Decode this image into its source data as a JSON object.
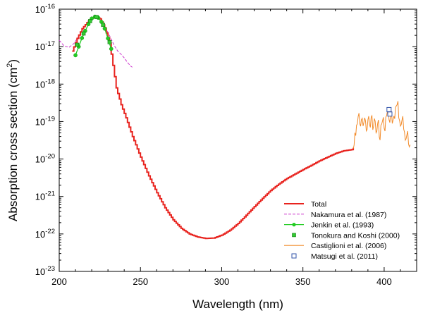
{
  "chart_data": {
    "type": "line",
    "xlabel": "Wavelength (nm)",
    "ylabel_main": "Absorption cross section (cm",
    "ylabel_sup": "2",
    "ylabel_close": ")",
    "xlim": [
      200,
      420
    ],
    "ylim_log10": [
      -23,
      -16
    ],
    "x_ticks": [
      200,
      250,
      300,
      350,
      400
    ],
    "y_tick_base": "10",
    "y_tick_exponents": [
      "-23",
      "-22",
      "-21",
      "-20",
      "-19",
      "-18",
      "-17",
      "-16"
    ],
    "colors": {
      "total": "#e8231e",
      "nakamura": "#cc33cc",
      "jenkin": "#22cc22",
      "tonokura": "#33cc33",
      "castiglioni": "#f28b2a",
      "matsugi": "#3355aa"
    },
    "series": [
      {
        "name": "Total",
        "style": "staircase-line",
        "points": [
          [
            208,
            -17.12
          ],
          [
            211,
            -16.78
          ],
          [
            214,
            -16.52
          ],
          [
            217,
            -16.36
          ],
          [
            220,
            -16.24
          ],
          [
            222.5,
            -16.2
          ],
          [
            225,
            -16.26
          ],
          [
            228,
            -16.5
          ],
          [
            231,
            -16.9
          ],
          [
            233,
            -17.5
          ],
          [
            235,
            -18.1
          ],
          [
            238,
            -18.55
          ],
          [
            241,
            -18.9
          ],
          [
            245,
            -19.4
          ],
          [
            250,
            -19.95
          ],
          [
            255,
            -20.45
          ],
          [
            260,
            -20.9
          ],
          [
            265,
            -21.3
          ],
          [
            270,
            -21.62
          ],
          [
            275,
            -21.85
          ],
          [
            280,
            -22.0
          ],
          [
            285,
            -22.08
          ],
          [
            290,
            -22.12
          ],
          [
            295,
            -22.11
          ],
          [
            300,
            -22.03
          ],
          [
            305,
            -21.9
          ],
          [
            310,
            -21.72
          ],
          [
            315,
            -21.5
          ],
          [
            320,
            -21.27
          ],
          [
            325,
            -21.05
          ],
          [
            330,
            -20.84
          ],
          [
            335,
            -20.67
          ],
          [
            340,
            -20.52
          ],
          [
            345,
            -20.4
          ],
          [
            350,
            -20.28
          ],
          [
            355,
            -20.17
          ],
          [
            360,
            -20.05
          ],
          [
            365,
            -19.95
          ],
          [
            370,
            -19.85
          ],
          [
            375,
            -19.78
          ],
          [
            380,
            -19.75
          ],
          [
            381,
            -19.7
          ]
        ]
      },
      {
        "name": "Nakamura et al.  (1987)",
        "style": "dashed",
        "points": [
          [
            200,
            -16.83
          ],
          [
            203,
            -16.98
          ],
          [
            206,
            -17.02
          ],
          [
            209,
            -16.92
          ],
          [
            212,
            -16.72
          ],
          [
            215,
            -16.5
          ],
          [
            218,
            -16.32
          ],
          [
            221,
            -16.24
          ],
          [
            223,
            -16.22
          ],
          [
            225,
            -16.28
          ],
          [
            227,
            -16.4
          ],
          [
            230,
            -16.62
          ],
          [
            232,
            -16.8
          ],
          [
            234,
            -16.98
          ],
          [
            236,
            -17.12
          ],
          [
            238,
            -17.2
          ],
          [
            240,
            -17.3
          ],
          [
            242,
            -17.42
          ],
          [
            244,
            -17.52
          ],
          [
            245,
            -17.55
          ]
        ]
      },
      {
        "name": "Jenkin et al. (1993)",
        "style": "line-markers",
        "points": [
          [
            210,
            -17.23
          ],
          [
            212,
            -17.0
          ],
          [
            214,
            -16.77
          ],
          [
            216,
            -16.58
          ],
          [
            218,
            -16.4
          ],
          [
            220,
            -16.25
          ],
          [
            222,
            -16.2
          ],
          [
            224,
            -16.23
          ],
          [
            226,
            -16.34
          ],
          [
            228,
            -16.52
          ],
          [
            230,
            -16.78
          ],
          [
            232,
            -17.06
          ]
        ]
      },
      {
        "name": "Tonokura and Koshi (2000)",
        "style": "square-markers",
        "points": [
          [
            211,
            -16.95
          ],
          [
            215,
            -16.65
          ],
          [
            219,
            -16.32
          ],
          [
            223,
            -16.21
          ],
          [
            227,
            -16.42
          ],
          [
            231,
            -16.88
          ]
        ]
      },
      {
        "name": "Castiglioni et al. (2006)",
        "style": "noisy-line",
        "points": [
          [
            381,
            -19.72
          ],
          [
            382,
            -19.3
          ],
          [
            383,
            -19.1
          ],
          [
            384,
            -18.87
          ],
          [
            385,
            -19.05
          ],
          [
            386,
            -18.95
          ],
          [
            387,
            -19.12
          ],
          [
            388,
            -18.9
          ],
          [
            389,
            -19.25
          ],
          [
            390,
            -18.95
          ],
          [
            391,
            -19.08
          ],
          [
            392,
            -18.88
          ],
          [
            393,
            -19.22
          ],
          [
            394,
            -18.92
          ],
          [
            395,
            -19.3
          ],
          [
            396,
            -19.05
          ],
          [
            397,
            -19.42
          ],
          [
            398,
            -19.1
          ],
          [
            399,
            -18.98
          ],
          [
            400,
            -19.18
          ],
          [
            401,
            -18.88
          ],
          [
            402,
            -18.72
          ],
          [
            403,
            -18.95
          ],
          [
            404,
            -18.78
          ],
          [
            405,
            -19.05
          ],
          [
            406,
            -18.85
          ],
          [
            407,
            -18.62
          ],
          [
            408,
            -18.55
          ],
          [
            409,
            -18.9
          ],
          [
            410,
            -19.12
          ],
          [
            411,
            -18.95
          ],
          [
            412,
            -19.2
          ],
          [
            413,
            -19.5
          ],
          [
            414,
            -19.35
          ],
          [
            415,
            -19.6
          ],
          [
            416,
            -19.62
          ]
        ]
      },
      {
        "name": "Matsugi et al. (2011)",
        "style": "open-squares",
        "points": [
          [
            403,
            -18.68
          ],
          [
            403.5,
            -18.8
          ]
        ]
      }
    ]
  }
}
